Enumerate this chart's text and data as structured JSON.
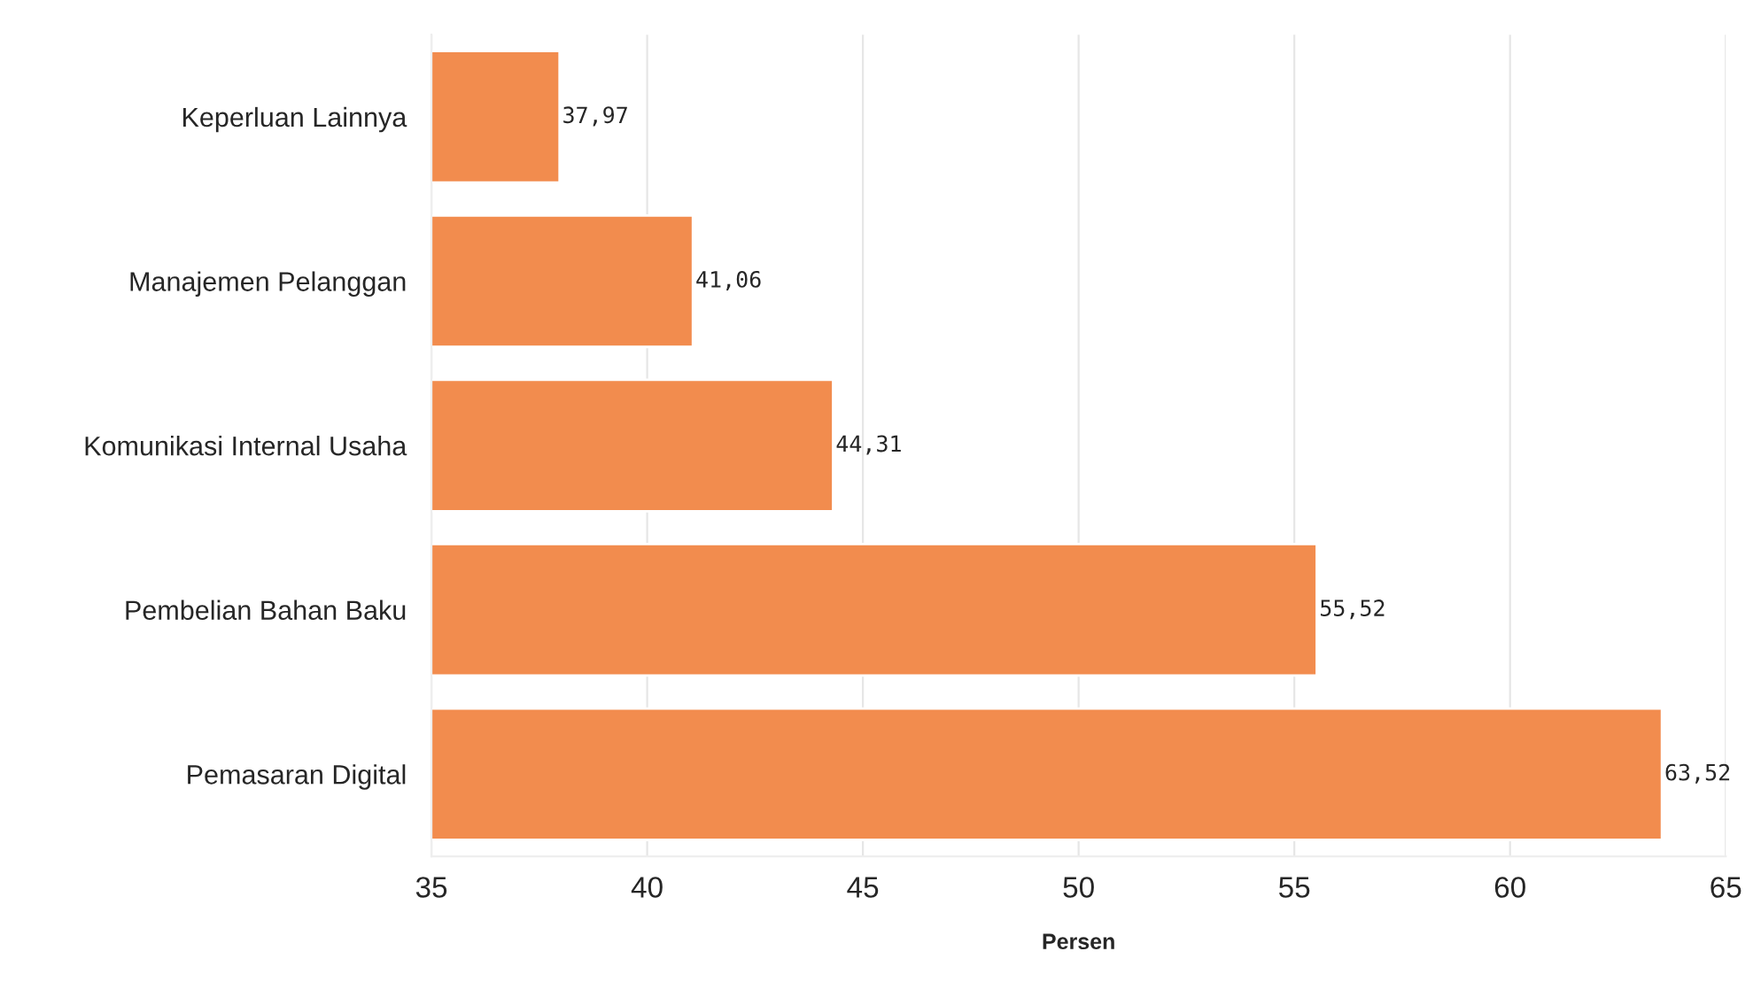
{
  "chart_data": {
    "type": "bar",
    "orientation": "horizontal",
    "xlabel": "Persen",
    "categories": [
      "Keperluan Lainnya",
      "Manajemen Pelanggan",
      "Komunikasi Internal Usaha",
      "Pembelian Bahan Baku",
      "Pemasaran Digital"
    ],
    "values": [
      37.97,
      41.06,
      44.31,
      55.52,
      63.52
    ],
    "value_labels": [
      "37,97",
      "41,06",
      "44,31",
      "55,52",
      "63,52"
    ],
    "color": "#f28c4e",
    "xlim": [
      35,
      65
    ],
    "xticks": [
      35,
      40,
      45,
      50,
      55,
      60,
      65
    ],
    "grid": "x",
    "legend": false
  }
}
